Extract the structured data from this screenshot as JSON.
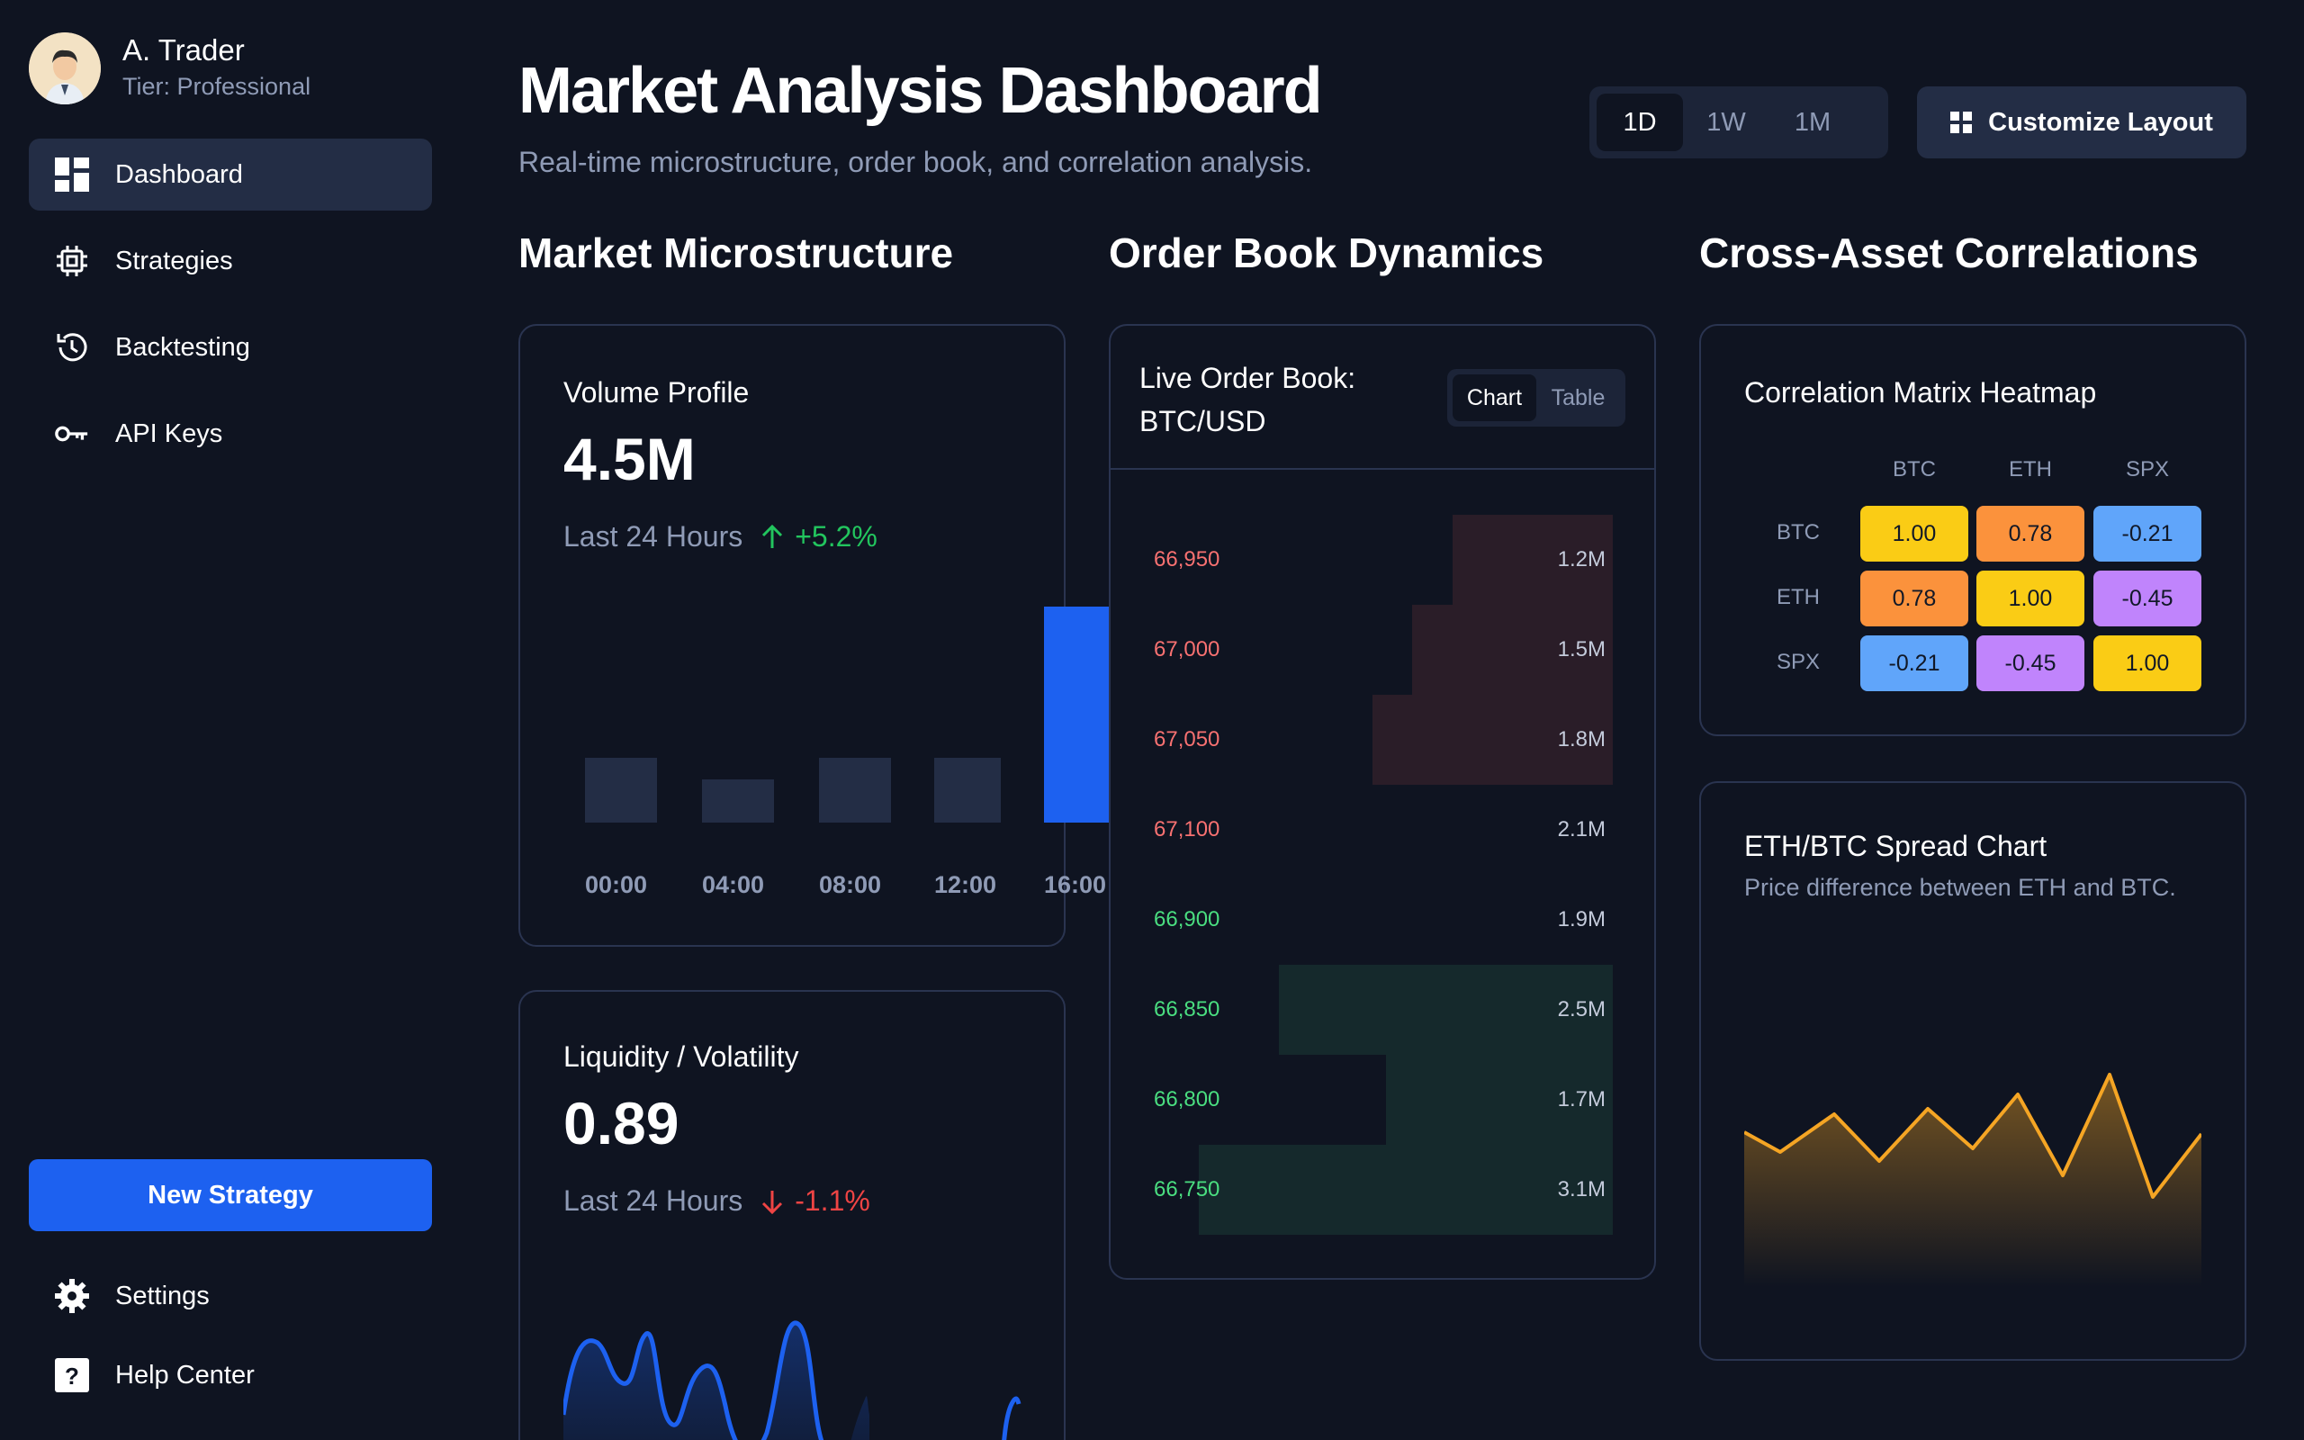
{
  "colors": {
    "background": "#0f1421",
    "accent": "#1d61f0",
    "positive": "#22c55e",
    "negative": "#ef4444",
    "ask": "#f87171",
    "bid": "#4ade80",
    "spread_line": "#f5a524"
  },
  "user": {
    "name": "A. Trader",
    "tier": "Tier: Professional"
  },
  "sidebar": {
    "items": [
      {
        "label": "Dashboard",
        "icon": "dashboard-icon",
        "active": true
      },
      {
        "label": "Strategies",
        "icon": "chip-icon",
        "active": false
      },
      {
        "label": "Backtesting",
        "icon": "history-icon",
        "active": false
      },
      {
        "label": "API Keys",
        "icon": "key-icon",
        "active": false
      }
    ],
    "new_strategy": "New Strategy",
    "bottom": [
      {
        "label": "Settings",
        "icon": "gear-icon"
      },
      {
        "label": "Help Center",
        "icon": "help-icon"
      }
    ]
  },
  "header": {
    "title": "Market Analysis Dashboard",
    "subtitle": "Real-time microstructure, order book, and correlation analysis.",
    "timeframes": [
      "1D",
      "1W",
      "1M"
    ],
    "timeframe_selected": "1D",
    "customize_label": "Customize Layout"
  },
  "sections": {
    "microstructure": "Market Microstructure",
    "orderbook": "Order Book Dynamics",
    "correlations": "Cross-Asset Correlations"
  },
  "volume_profile": {
    "title": "Volume Profile",
    "value": "4.5M",
    "period": "Last 24 Hours",
    "change": "+5.2%",
    "direction": "up",
    "bars": [
      {
        "label": "00:00",
        "level": 0.3
      },
      {
        "label": "04:00",
        "level": 0.2
      },
      {
        "label": "08:00",
        "level": 0.3
      },
      {
        "label": "12:00",
        "level": 0.3
      },
      {
        "label": "16:00",
        "level": 1.0,
        "highlight": true
      }
    ]
  },
  "liquidity": {
    "title": "Liquidity / Volatility",
    "value": "0.89",
    "period": "Last 24 Hours",
    "change": "-1.1%",
    "direction": "down"
  },
  "order_book": {
    "title": "Live Order Book: BTC/USD",
    "toggle": [
      "Chart",
      "Table"
    ],
    "toggle_selected": "Chart",
    "asks": [
      {
        "price": "66,950",
        "size": "1.2M"
      },
      {
        "price": "67,000",
        "size": "1.5M"
      },
      {
        "price": "67,050",
        "size": "1.8M"
      },
      {
        "price": "67,100",
        "size": "2.1M"
      }
    ],
    "bids": [
      {
        "price": "66,900",
        "size": "1.9M"
      },
      {
        "price": "66,850",
        "size": "2.5M"
      },
      {
        "price": "66,800",
        "size": "1.7M"
      },
      {
        "price": "66,750",
        "size": "3.1M"
      }
    ]
  },
  "correlation": {
    "title": "Correlation Matrix Heatmap",
    "assets": [
      "BTC",
      "ETH",
      "SPX"
    ],
    "matrix": [
      [
        "1.00",
        "0.78",
        "-0.21"
      ],
      [
        "0.78",
        "1.00",
        "-0.45"
      ],
      [
        "-0.21",
        "-0.45",
        "1.00"
      ]
    ],
    "cell_colors": [
      [
        "#facc15",
        "#fb923c",
        "#60a5fa"
      ],
      [
        "#fb923c",
        "#facc15",
        "#c084fc"
      ],
      [
        "#60a5fa",
        "#c084fc",
        "#facc15"
      ]
    ]
  },
  "spread": {
    "title": "ETH/BTC Spread Chart",
    "description": "Price difference between ETH and BTC."
  }
}
